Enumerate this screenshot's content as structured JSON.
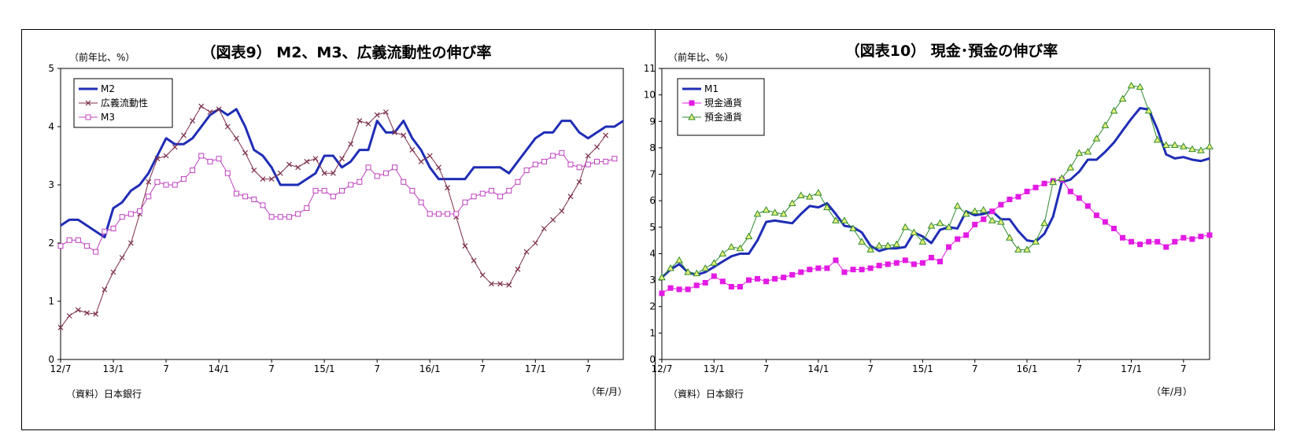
{
  "chart_data": [
    {
      "type": "line",
      "title": "（図表9） M2、M3、広義流動性の伸び率",
      "ylabel": "（前年比、%）",
      "xlabel": "（年/月）",
      "source": "（資料）日本銀行",
      "ylim": [
        0,
        5
      ],
      "yticks": [
        "0",
        "1",
        "2",
        "3",
        "4",
        "5"
      ],
      "x_tick_labels": [
        {
          "i": 0,
          "label": "12/7"
        },
        {
          "i": 6,
          "label": "13/1"
        },
        {
          "i": 12,
          "label": "7"
        },
        {
          "i": 18,
          "label": "14/1"
        },
        {
          "i": 24,
          "label": "7"
        },
        {
          "i": 30,
          "label": "15/1"
        },
        {
          "i": 36,
          "label": "7"
        },
        {
          "i": 42,
          "label": "16/1"
        },
        {
          "i": 48,
          "label": "7"
        },
        {
          "i": 54,
          "label": "17/1"
        },
        {
          "i": 60,
          "label": "7"
        }
      ],
      "legend": "top-left",
      "series": [
        {
          "name": "M2",
          "color": "#1f2db5",
          "marker": "none",
          "values": [
            2.3,
            2.4,
            2.4,
            2.3,
            2.2,
            2.1,
            2.6,
            2.7,
            2.9,
            3.0,
            3.2,
            3.5,
            3.8,
            3.7,
            3.7,
            3.8,
            4.0,
            4.2,
            4.3,
            4.2,
            4.3,
            4.0,
            3.6,
            3.5,
            3.3,
            3.0,
            3.0,
            3.0,
            3.1,
            3.2,
            3.5,
            3.5,
            3.3,
            3.4,
            3.6,
            3.6,
            4.1,
            3.9,
            3.9,
            4.1,
            3.8,
            3.6,
            3.3,
            3.1,
            3.1,
            3.1,
            3.1,
            3.3,
            3.3,
            3.3,
            3.3,
            3.2,
            3.4,
            3.6,
            3.8,
            3.9,
            3.9,
            4.1,
            4.1,
            3.9,
            3.8,
            3.9,
            4.0,
            4.0,
            4.1
          ]
        },
        {
          "name": "広義流動性",
          "color": "#7b2c4a",
          "marker": "x",
          "values": [
            0.55,
            0.75,
            0.85,
            0.8,
            0.78,
            1.2,
            1.5,
            1.75,
            2.0,
            2.5,
            3.05,
            3.45,
            3.5,
            3.65,
            3.85,
            4.1,
            4.35,
            4.25,
            4.3,
            4.0,
            3.8,
            3.55,
            3.25,
            3.1,
            3.1,
            3.2,
            3.35,
            3.3,
            3.4,
            3.45,
            3.2,
            3.2,
            3.45,
            3.7,
            4.1,
            4.05,
            4.2,
            4.25,
            3.9,
            3.85,
            3.6,
            3.4,
            3.5,
            3.3,
            2.95,
            2.45,
            1.95,
            1.7,
            1.45,
            1.3,
            1.3,
            1.28,
            1.55,
            1.85,
            2.0,
            2.25,
            2.4,
            2.55,
            2.8,
            3.05,
            3.5,
            3.65,
            3.85
          ]
        },
        {
          "name": "M3",
          "color": "#c040c0",
          "marker": "square",
          "values": [
            1.95,
            2.05,
            2.05,
            1.95,
            1.85,
            2.2,
            2.25,
            2.45,
            2.5,
            2.55,
            2.8,
            3.05,
            3.0,
            3.0,
            3.1,
            3.25,
            3.5,
            3.4,
            3.45,
            3.2,
            2.85,
            2.8,
            2.75,
            2.65,
            2.45,
            2.45,
            2.45,
            2.5,
            2.6,
            2.9,
            2.9,
            2.8,
            2.9,
            3.0,
            3.05,
            3.3,
            3.15,
            3.2,
            3.3,
            3.05,
            2.9,
            2.7,
            2.5,
            2.5,
            2.5,
            2.5,
            2.7,
            2.8,
            2.85,
            2.9,
            2.8,
            2.9,
            3.05,
            3.25,
            3.35,
            3.4,
            3.5,
            3.55,
            3.35,
            3.3,
            3.35,
            3.4,
            3.4,
            3.45
          ]
        }
      ]
    },
    {
      "type": "line",
      "title": "（図表10） 現金･預金の伸び率",
      "ylabel": "（前年比、%）",
      "xlabel": "（年/月）",
      "source": "（資料）日本銀行",
      "ylim": [
        0,
        11
      ],
      "yticks": [
        "0",
        "1",
        "2",
        "3",
        "4",
        "5",
        "6",
        "7",
        "8",
        "9",
        "10",
        "11"
      ],
      "x_tick_labels": [
        {
          "i": 0,
          "label": "12/7"
        },
        {
          "i": 6,
          "label": "13/1"
        },
        {
          "i": 12,
          "label": "7"
        },
        {
          "i": 18,
          "label": "14/1"
        },
        {
          "i": 24,
          "label": "7"
        },
        {
          "i": 30,
          "label": "15/1"
        },
        {
          "i": 36,
          "label": "7"
        },
        {
          "i": 42,
          "label": "16/1"
        },
        {
          "i": 48,
          "label": "7"
        },
        {
          "i": 54,
          "label": "17/1"
        },
        {
          "i": 60,
          "label": "7"
        }
      ],
      "legend": "top-left",
      "series": [
        {
          "name": "M1",
          "color": "#1f2db5",
          "marker": "none",
          "values": [
            3.1,
            3.4,
            3.6,
            3.3,
            3.2,
            3.3,
            3.5,
            3.7,
            3.9,
            4.0,
            4.0,
            4.5,
            5.2,
            5.25,
            5.2,
            5.15,
            5.5,
            5.8,
            5.75,
            5.9,
            5.5,
            5.05,
            5.0,
            4.8,
            4.3,
            4.1,
            4.2,
            4.2,
            4.25,
            4.8,
            4.65,
            4.4,
            4.9,
            5.0,
            4.95,
            5.6,
            5.45,
            5.5,
            5.6,
            5.3,
            5.3,
            4.85,
            4.5,
            4.45,
            4.75,
            5.4,
            6.7,
            6.8,
            7.1,
            7.55,
            7.55,
            7.85,
            8.2,
            8.65,
            9.1,
            9.5,
            9.45,
            8.7,
            7.75,
            7.6,
            7.65,
            7.55,
            7.5,
            7.6
          ]
        },
        {
          "name": "現金通貨",
          "color": "#e31ae3",
          "marker": "square",
          "values": [
            2.5,
            2.7,
            2.65,
            2.65,
            2.8,
            2.9,
            3.15,
            2.95,
            2.75,
            2.75,
            3.0,
            3.05,
            2.95,
            3.05,
            3.1,
            3.2,
            3.3,
            3.4,
            3.45,
            3.45,
            3.75,
            3.3,
            3.4,
            3.4,
            3.45,
            3.55,
            3.6,
            3.65,
            3.75,
            3.6,
            3.65,
            3.85,
            3.7,
            4.25,
            4.55,
            4.7,
            5.1,
            5.3,
            5.6,
            5.85,
            6.05,
            6.15,
            6.35,
            6.5,
            6.65,
            6.75,
            6.8,
            6.35,
            6.1,
            5.8,
            5.45,
            5.2,
            4.95,
            4.6,
            4.45,
            4.35,
            4.45,
            4.45,
            4.25,
            4.45,
            4.6,
            4.55,
            4.65,
            4.7
          ]
        },
        {
          "name": "預金通貨",
          "color": "#2e8b2e",
          "marker": "triangle",
          "values": [
            3.1,
            3.45,
            3.75,
            3.3,
            3.25,
            3.45,
            3.65,
            4.0,
            4.25,
            4.2,
            4.65,
            5.5,
            5.65,
            5.55,
            5.5,
            5.9,
            6.2,
            6.15,
            6.3,
            5.75,
            5.25,
            5.25,
            4.95,
            4.45,
            4.15,
            4.3,
            4.3,
            4.35,
            5.0,
            4.8,
            4.45,
            5.05,
            5.15,
            5.0,
            5.8,
            5.5,
            5.6,
            5.65,
            5.25,
            5.2,
            4.6,
            4.15,
            4.15,
            4.45,
            5.15,
            6.7,
            6.85,
            7.25,
            7.8,
            7.85,
            8.35,
            8.85,
            9.4,
            9.85,
            10.35,
            10.3,
            9.4,
            8.3,
            8.1,
            8.1,
            8.05,
            7.95,
            7.9,
            8.05
          ]
        }
      ]
    }
  ]
}
